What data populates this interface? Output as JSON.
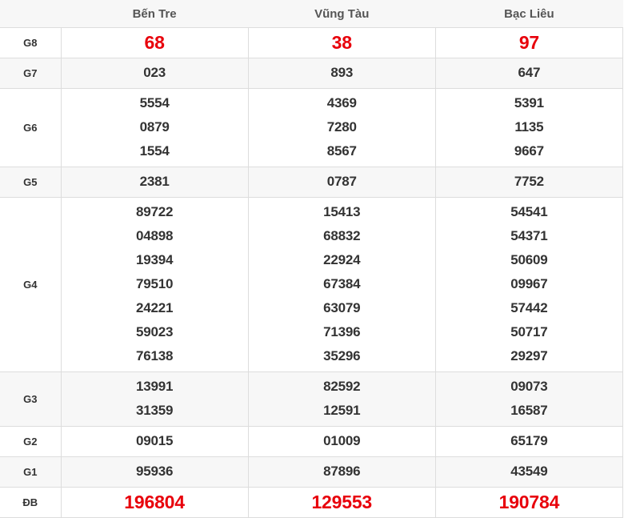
{
  "header": {
    "provinces": [
      "Bến Tre",
      "Vũng Tàu",
      "Bạc Liêu"
    ]
  },
  "colors": {
    "highlight": "#e8000b",
    "text": "#333333",
    "alt_row": "#f7f7f7",
    "border": "#dddddd"
  },
  "prizes": [
    {
      "label": "G8",
      "highlight": true,
      "results": [
        [
          "68"
        ],
        [
          "38"
        ],
        [
          "97"
        ]
      ]
    },
    {
      "label": "G7",
      "results": [
        [
          "023"
        ],
        [
          "893"
        ],
        [
          "647"
        ]
      ]
    },
    {
      "label": "G6",
      "results": [
        [
          "5554",
          "0879",
          "1554"
        ],
        [
          "4369",
          "7280",
          "8567"
        ],
        [
          "5391",
          "1135",
          "9667"
        ]
      ]
    },
    {
      "label": "G5",
      "results": [
        [
          "2381"
        ],
        [
          "0787"
        ],
        [
          "7752"
        ]
      ]
    },
    {
      "label": "G4",
      "results": [
        [
          "89722",
          "04898",
          "19394",
          "79510",
          "24221",
          "59023",
          "76138"
        ],
        [
          "15413",
          "68832",
          "22924",
          "67384",
          "63079",
          "71396",
          "35296"
        ],
        [
          "54541",
          "54371",
          "50609",
          "09967",
          "57442",
          "50717",
          "29297"
        ]
      ]
    },
    {
      "label": "G3",
      "results": [
        [
          "13991",
          "31359"
        ],
        [
          "82592",
          "12591"
        ],
        [
          "09073",
          "16587"
        ]
      ]
    },
    {
      "label": "G2",
      "results": [
        [
          "09015"
        ],
        [
          "01009"
        ],
        [
          "65179"
        ]
      ]
    },
    {
      "label": "G1",
      "results": [
        [
          "95936"
        ],
        [
          "87896"
        ],
        [
          "43549"
        ]
      ]
    },
    {
      "label": "ĐB",
      "highlight": true,
      "results": [
        [
          "196804"
        ],
        [
          "129553"
        ],
        [
          "190784"
        ]
      ]
    }
  ]
}
